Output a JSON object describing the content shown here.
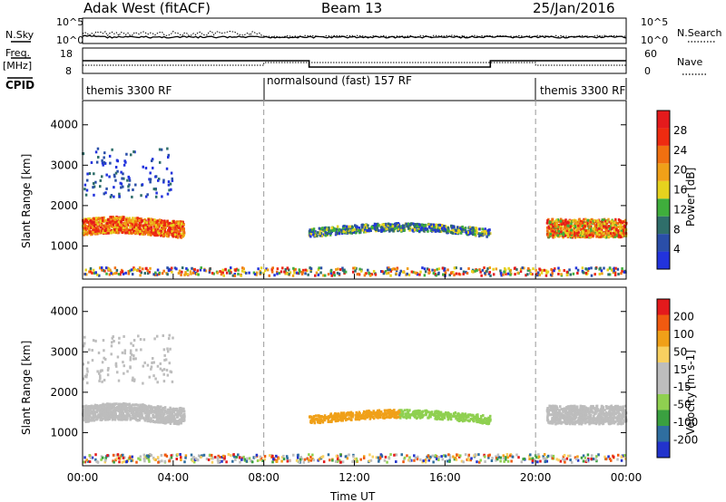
{
  "header": {
    "station": "Adak West (fitACF)",
    "beam": "Beam 13",
    "date": "25/Jan/2016"
  },
  "noise_panel": {
    "left_label": "N.Sky",
    "right_label": "N.Search",
    "ticks_top": "10^5",
    "ticks_bottom": "10^0"
  },
  "freq_panel": {
    "left_label_1": "Freq.",
    "left_label_2": "[MHz]",
    "right_label": "Nave",
    "left_ticks": [
      "18",
      "8"
    ],
    "right_ticks": [
      "60",
      "0"
    ],
    "cpid_label": "CPID"
  },
  "cpid_segments": [
    {
      "label": "themis 3300 RF",
      "start_hour": 0,
      "end_hour": 8
    },
    {
      "label": "normalsound (fast) 157 RF",
      "start_hour": 8,
      "end_hour": 20
    },
    {
      "label": "themis 3300 RF",
      "start_hour": 20,
      "end_hour": 24
    }
  ],
  "colors": {
    "power": [
      "#2233dd",
      "#2a4ea8",
      "#2f6e6a",
      "#3fae3c",
      "#e6d21e",
      "#f0a018",
      "#f07010",
      "#ee2b10",
      "#e41a1c"
    ],
    "velocity": [
      "#e41a1c",
      "#f05a10",
      "#f0a018",
      "#f8d060",
      "#bdbdbd",
      "#bdbdbd",
      "#8fd050",
      "#3aa040",
      "#2f6ea0",
      "#2233cc"
    ]
  },
  "chart_data": [
    {
      "type": "heatmap",
      "title": "",
      "ylabel": "Slant Range [km]",
      "xlabel": "",
      "xlim": [
        0,
        24
      ],
      "ylim": [
        180,
        4600
      ],
      "yticks": [
        "1000",
        "2000",
        "3000",
        "4000"
      ],
      "colorbar": {
        "label": "Power [dB]",
        "ticks": [
          "4",
          "8",
          "12",
          "16",
          "20",
          "24",
          "28"
        ],
        "range": [
          0,
          32
        ]
      }
    },
    {
      "type": "heatmap",
      "title": "",
      "ylabel": "Slant Range [km]",
      "xlabel": "Time UT",
      "xlim": [
        0,
        24
      ],
      "ylim": [
        180,
        4600
      ],
      "yticks": [
        "1000",
        "2000",
        "3000",
        "4000"
      ],
      "xticks": [
        "00:00",
        "04:00",
        "08:00",
        "12:00",
        "16:00",
        "20:00",
        "00:00"
      ],
      "colorbar": {
        "label": "Velocity [m s-1]",
        "ticks": [
          "200",
          "100",
          "50",
          "15",
          "-15",
          "-50",
          "-100",
          "-200"
        ],
        "range": [
          -250,
          250
        ]
      }
    }
  ]
}
